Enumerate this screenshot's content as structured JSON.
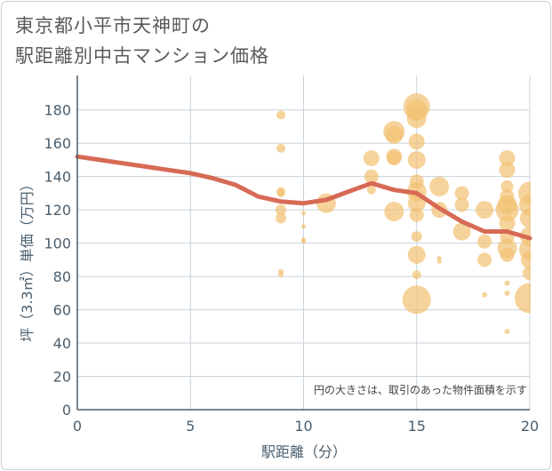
{
  "chart_data": {
    "type": "scatter",
    "title_lines": [
      "東京都小平市天神町の",
      "駅距離別中古マンション価格"
    ],
    "xlabel": "駅距離（分）",
    "ylabel": "坪（3.3㎡）単価（万円）",
    "annotation": "円の大きさは、取引のあった物件面積を示す",
    "xlim": [
      0,
      20
    ],
    "ylim": [
      0,
      190
    ],
    "x_ticks": [
      0,
      5,
      10,
      15,
      20
    ],
    "y_ticks": [
      0,
      20,
      40,
      60,
      80,
      100,
      120,
      140,
      160,
      180
    ],
    "grid": true,
    "colors": {
      "bubble": "#f3c274",
      "trend": "#d66a55",
      "grid": "#c9d3dc",
      "axis": "#4a5e6e"
    },
    "series": [
      {
        "name": "trend",
        "kind": "line",
        "x": [
          0,
          1,
          2,
          3,
          4,
          5,
          6,
          7,
          8,
          9,
          10,
          11,
          12,
          13,
          14,
          15,
          16,
          17,
          18,
          19,
          20
        ],
        "y": [
          152,
          150,
          148,
          146,
          144,
          142,
          139,
          135,
          128,
          125,
          124,
          126,
          131,
          136,
          132,
          130,
          121,
          113,
          107,
          107,
          103
        ]
      },
      {
        "name": "transactions",
        "kind": "bubble",
        "points": [
          {
            "x": 9,
            "y": 177,
            "s": 10
          },
          {
            "x": 9,
            "y": 157,
            "s": 10
          },
          {
            "x": 9,
            "y": 131,
            "s": 10
          },
          {
            "x": 9,
            "y": 130,
            "s": 9
          },
          {
            "x": 9,
            "y": 120,
            "s": 12
          },
          {
            "x": 9,
            "y": 115,
            "s": 12
          },
          {
            "x": 9,
            "y": 83,
            "s": 6
          },
          {
            "x": 9,
            "y": 81,
            "s": 6
          },
          {
            "x": 10,
            "y": 118,
            "s": 5
          },
          {
            "x": 10,
            "y": 110,
            "s": 5
          },
          {
            "x": 10,
            "y": 102,
            "s": 5
          },
          {
            "x": 10,
            "y": 101,
            "s": 5
          },
          {
            "x": 11,
            "y": 124,
            "s": 22
          },
          {
            "x": 13,
            "y": 151,
            "s": 18
          },
          {
            "x": 13,
            "y": 140,
            "s": 16
          },
          {
            "x": 13,
            "y": 132,
            "s": 10
          },
          {
            "x": 14,
            "y": 167,
            "s": 24
          },
          {
            "x": 14,
            "y": 165,
            "s": 20
          },
          {
            "x": 14,
            "y": 152,
            "s": 18
          },
          {
            "x": 14,
            "y": 151,
            "s": 16
          },
          {
            "x": 14,
            "y": 119,
            "s": 22
          },
          {
            "x": 15,
            "y": 182,
            "s": 30
          },
          {
            "x": 15,
            "y": 180,
            "s": 24
          },
          {
            "x": 15,
            "y": 175,
            "s": 22
          },
          {
            "x": 15,
            "y": 161,
            "s": 18
          },
          {
            "x": 15,
            "y": 150,
            "s": 20
          },
          {
            "x": 15,
            "y": 137,
            "s": 16
          },
          {
            "x": 15,
            "y": 131,
            "s": 22
          },
          {
            "x": 15,
            "y": 124,
            "s": 20
          },
          {
            "x": 15,
            "y": 117,
            "s": 16
          },
          {
            "x": 15,
            "y": 104,
            "s": 12
          },
          {
            "x": 15,
            "y": 93,
            "s": 20
          },
          {
            "x": 15,
            "y": 81,
            "s": 10
          },
          {
            "x": 15,
            "y": 66,
            "s": 32
          },
          {
            "x": 16,
            "y": 134,
            "s": 22
          },
          {
            "x": 16,
            "y": 120,
            "s": 18
          },
          {
            "x": 16,
            "y": 91,
            "s": 5
          },
          {
            "x": 16,
            "y": 89,
            "s": 5
          },
          {
            "x": 17,
            "y": 130,
            "s": 16
          },
          {
            "x": 17,
            "y": 123,
            "s": 16
          },
          {
            "x": 17,
            "y": 107,
            "s": 20
          },
          {
            "x": 18,
            "y": 120,
            "s": 20
          },
          {
            "x": 18,
            "y": 101,
            "s": 16
          },
          {
            "x": 18,
            "y": 90,
            "s": 16
          },
          {
            "x": 18,
            "y": 69,
            "s": 6
          },
          {
            "x": 19,
            "y": 151,
            "s": 18
          },
          {
            "x": 19,
            "y": 144,
            "s": 18
          },
          {
            "x": 19,
            "y": 134,
            "s": 14
          },
          {
            "x": 19,
            "y": 128,
            "s": 16
          },
          {
            "x": 19,
            "y": 123,
            "s": 22
          },
          {
            "x": 19,
            "y": 120,
            "s": 26
          },
          {
            "x": 19,
            "y": 112,
            "s": 18
          },
          {
            "x": 19,
            "y": 104,
            "s": 16
          },
          {
            "x": 19,
            "y": 97,
            "s": 22
          },
          {
            "x": 19,
            "y": 93,
            "s": 16
          },
          {
            "x": 19,
            "y": 76,
            "s": 6
          },
          {
            "x": 19,
            "y": 70,
            "s": 6
          },
          {
            "x": 19,
            "y": 47,
            "s": 6
          },
          {
            "x": 20,
            "y": 130,
            "s": 26
          },
          {
            "x": 20,
            "y": 123,
            "s": 24
          },
          {
            "x": 20,
            "y": 115,
            "s": 22
          },
          {
            "x": 20,
            "y": 104,
            "s": 22
          },
          {
            "x": 20,
            "y": 96,
            "s": 24
          },
          {
            "x": 20,
            "y": 90,
            "s": 20
          },
          {
            "x": 20,
            "y": 82,
            "s": 16
          },
          {
            "x": 20,
            "y": 67,
            "s": 34
          }
        ]
      }
    ]
  }
}
